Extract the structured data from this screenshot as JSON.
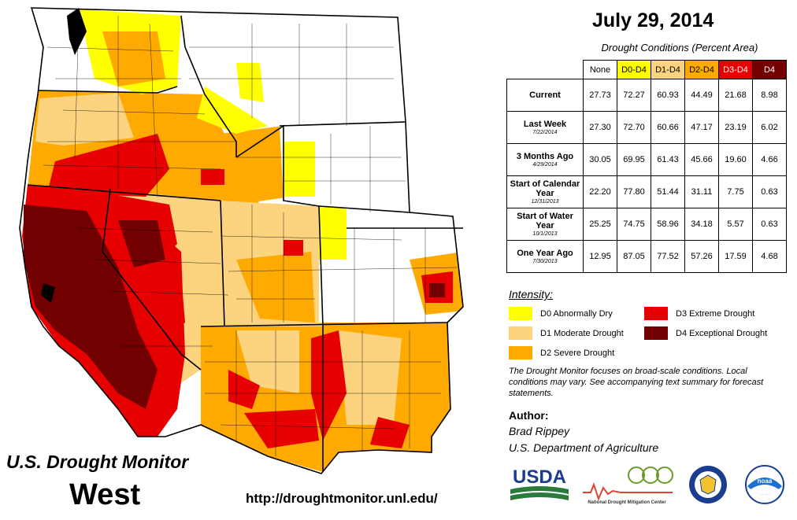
{
  "brand_title": "U.S. Drought Monitor",
  "region": "West",
  "url": "http://droughtmonitor.unl.edu/",
  "date": "July 29, 2014",
  "table": {
    "caption": "Drought Conditions (Percent Area)",
    "headers": [
      "None",
      "D0-D4",
      "D1-D4",
      "D2-D4",
      "D3-D4",
      "D4"
    ],
    "rows": [
      {
        "label": "Current",
        "sub": "",
        "values": [
          "27.73",
          "72.27",
          "60.93",
          "44.49",
          "21.68",
          "8.98"
        ]
      },
      {
        "label": "Last Week",
        "sub": "7/22/2014",
        "values": [
          "27.30",
          "72.70",
          "60.66",
          "47.17",
          "23.19",
          "6.02"
        ]
      },
      {
        "label": "3 Months Ago",
        "sub": "4/29/2014",
        "values": [
          "30.05",
          "69.95",
          "61.43",
          "45.66",
          "19.60",
          "4.66"
        ]
      },
      {
        "label": "Start of Calendar Year",
        "sub": "12/31/2013",
        "values": [
          "22.20",
          "77.80",
          "51.44",
          "31.11",
          "7.75",
          "0.63"
        ]
      },
      {
        "label": "Start of Water Year",
        "sub": "10/1/2013",
        "values": [
          "25.25",
          "74.75",
          "58.96",
          "34.18",
          "5.57",
          "0.63"
        ]
      },
      {
        "label": "One Year Ago",
        "sub": "7/30/2013",
        "values": [
          "12.95",
          "87.05",
          "77.52",
          "57.26",
          "17.59",
          "4.68"
        ]
      }
    ]
  },
  "legend": {
    "title": "Intensity:",
    "items": [
      {
        "label": "D0 Abnormally Dry",
        "color": "#ffff00"
      },
      {
        "label": "D1 Moderate Drought",
        "color": "#fcd37f"
      },
      {
        "label": "D2 Severe Drought",
        "color": "#ffaa00"
      },
      {
        "label": "D3 Extreme Drought",
        "color": "#e60000"
      },
      {
        "label": "D4 Exceptional Drought",
        "color": "#730000"
      }
    ]
  },
  "note": "The Drought Monitor focuses on broad-scale conditions. Local conditions may vary. See accompanying text summary for forecast statements.",
  "author": {
    "title": "Author:",
    "name": "Brad Rippey",
    "org": "U.S. Department of Agriculture"
  },
  "logos": {
    "usda": "USDA",
    "ndmc": "National Drought Mitigation Center",
    "noaa": "noaa"
  }
}
